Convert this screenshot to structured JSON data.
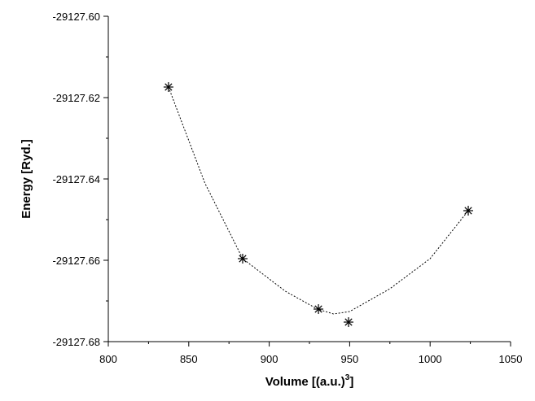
{
  "chart_data": {
    "type": "scatter",
    "x_label": "Volume [(a.u.)",
    "x_label_sup": "3",
    "x_label_end": "]",
    "y_label": "Energy [Ryd.]",
    "xlim": [
      800,
      1050
    ],
    "xticks": [
      800,
      850,
      900,
      950,
      1000,
      1050
    ],
    "xminorticks": [
      825,
      875,
      925,
      975,
      1025
    ],
    "ylim": [
      -29127.68,
      -29127.6
    ],
    "yticks": [
      {
        "value": -29127.6,
        "label": "-29127.60"
      },
      -29127.62,
      -29127.64,
      -29127.66,
      -29127.68
    ],
    "yminorticks": [
      -29127.61,
      -29127.63,
      -29127.65,
      -29127.67
    ],
    "series": [
      {
        "x": [
          837.4,
          883.5,
          930.6,
          949.3,
          1023.7
        ],
        "values": [
          -29127.6174,
          -29127.6596,
          -29127.672,
          -29127.6752,
          -29127.6478
        ],
        "color": "#000000",
        "marker": "asterisk"
      },
      {
        "x": [
          837.4,
          860,
          883.5,
          910,
          930,
          940,
          950,
          975,
          1000,
          1023.7
        ],
        "values": [
          -29127.6174,
          -29127.641,
          -29127.6596,
          -29127.6676,
          -29127.672,
          -29127.6732,
          -29127.6726,
          -29127.667,
          -29127.6596,
          -29127.6478
        ],
        "color": "#000000",
        "line": "dotted"
      }
    ]
  }
}
